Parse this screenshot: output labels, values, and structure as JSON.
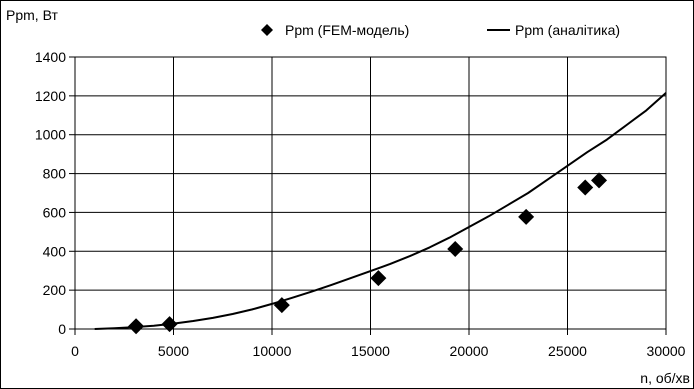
{
  "chart_data": {
    "type": "scatter",
    "title": "",
    "ylabel": "Ppm, Вт",
    "xlabel": "n, об/хв",
    "xlim": [
      0,
      30000
    ],
    "ylim": [
      0,
      1400
    ],
    "x_ticks": [
      0,
      5000,
      10000,
      15000,
      20000,
      25000,
      30000
    ],
    "y_ticks": [
      0,
      200,
      400,
      600,
      800,
      1000,
      1200,
      1400
    ],
    "x_tick_labels": [
      "0",
      "5000",
      "10000",
      "15000",
      "20000",
      "25000",
      "30000"
    ],
    "y_tick_labels": [
      "0",
      "200",
      "400",
      "600",
      "800",
      "1000",
      "1200",
      "1400"
    ],
    "grid": true,
    "legend_position": "top",
    "series": [
      {
        "name": "Ppm (FEM-модель)",
        "kind": "markers",
        "marker": "diamond",
        "color": "#000000",
        "x": [
          3100,
          4800,
          10500,
          15400,
          19300,
          22900,
          25900,
          26600
        ],
        "y": [
          14,
          25,
          123,
          262,
          412,
          577,
          728,
          765
        ]
      },
      {
        "name": "Ppm (аналітика)",
        "kind": "line",
        "color": "#000000",
        "x": [
          1000,
          2000,
          3000,
          4000,
          5000,
          6000,
          7000,
          8000,
          9000,
          10000,
          11000,
          12000,
          13000,
          14000,
          15000,
          16000,
          17000,
          18000,
          19000,
          20000,
          21000,
          22000,
          23000,
          24000,
          25000,
          26000,
          27000,
          28000,
          29000,
          30000
        ],
        "y": [
          0,
          4,
          10,
          17,
          28,
          41,
          57,
          77,
          101,
          129,
          160,
          192,
          226,
          262,
          298,
          335,
          375,
          420,
          470,
          525,
          580,
          640,
          700,
          770,
          840,
          910,
          975,
          1050,
          1125,
          1215
        ]
      }
    ]
  }
}
